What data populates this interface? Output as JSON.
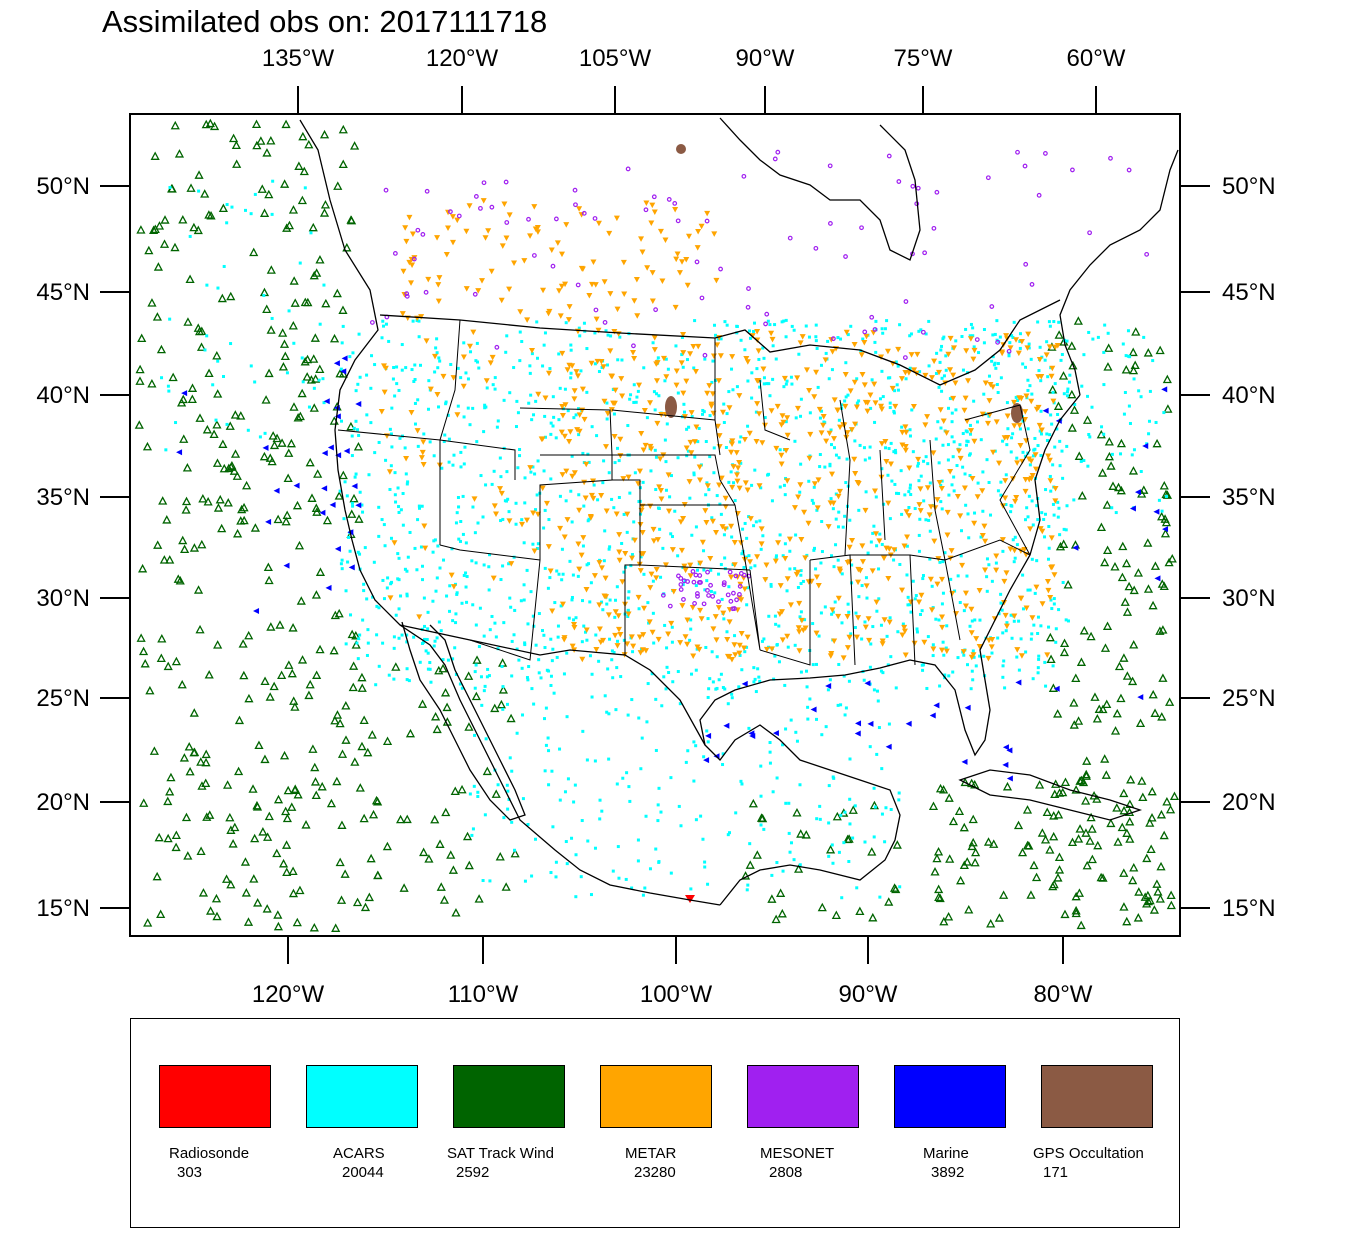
{
  "title": "Assimilated obs on: 2017111718",
  "axes": {
    "top_lon": [
      "135°W",
      "120°W",
      "105°W",
      "90°W",
      "75°W",
      "60°W"
    ],
    "bottom_lon": [
      "120°W",
      "110°W",
      "100°W",
      "90°W",
      "80°W"
    ],
    "lat": [
      "50°N",
      "45°N",
      "40°N",
      "35°N",
      "30°N",
      "25°N",
      "20°N",
      "15°N"
    ]
  },
  "legend": [
    {
      "name": "Radiosonde",
      "count": "303",
      "color": "#ff0000"
    },
    {
      "name": "ACARS",
      "count": "20044",
      "color": "#00ffff"
    },
    {
      "name": "SAT Track Wind",
      "count": "2592",
      "color": "#006400"
    },
    {
      "name": "METAR",
      "count": "23280",
      "color": "#ffa500"
    },
    {
      "name": "MESONET",
      "count": "2808",
      "color": "#a020f0"
    },
    {
      "name": "Marine",
      "count": "3892",
      "color": "#0000ff"
    },
    {
      "name": "GPS Occultation",
      "count": "171",
      "color": "#8b5a44"
    }
  ]
}
